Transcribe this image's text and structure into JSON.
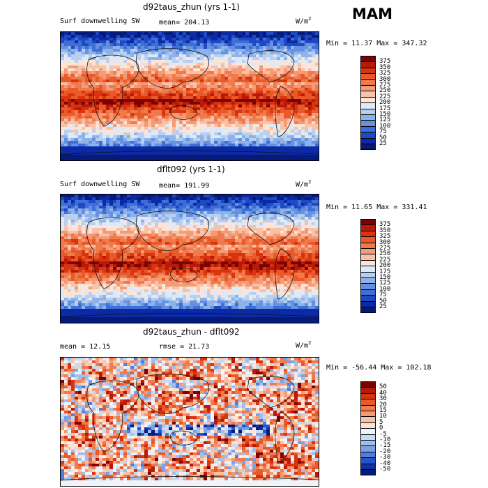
{
  "season": "MAM",
  "panels": [
    {
      "id": "top",
      "title": "d92taus_zhun (yrs 1-1)",
      "left_label": "Surf downwelling SW",
      "mean_label": "mean= 204.13",
      "units_base": "W/m",
      "units_exp": "2",
      "minmax": "Min =  11.37 Max = 347.32",
      "levels": [
        "375",
        "350",
        "325",
        "300",
        "275",
        "250",
        "225",
        "200",
        "175",
        "150",
        "125",
        "100",
        "75",
        "50",
        "25"
      ],
      "palette": [
        "#7a0403",
        "#b81a0a",
        "#d9340e",
        "#e85a2a",
        "#f07a4c",
        "#f59a77",
        "#f9c1a6",
        "#fce4d6",
        "#dde9f6",
        "#b8cff0",
        "#8eb3ea",
        "#6691e0",
        "#3d6fd7",
        "#1d4ac4",
        "#0c2aa6",
        "#061a7a"
      ]
    },
    {
      "id": "middle",
      "title": "dflt092 (yrs 1-1)",
      "left_label": "Surf downwelling SW",
      "mean_label": "mean= 191.99",
      "units_base": "W/m",
      "units_exp": "2",
      "minmax": "Min =  11.65 Max = 331.41",
      "levels": [
        "375",
        "350",
        "325",
        "300",
        "275",
        "250",
        "225",
        "200",
        "175",
        "150",
        "125",
        "100",
        "75",
        "50",
        "25"
      ],
      "palette": [
        "#7a0403",
        "#b81a0a",
        "#d9340e",
        "#e85a2a",
        "#f07a4c",
        "#f59a77",
        "#f9c1a6",
        "#fce4d6",
        "#dde9f6",
        "#b8cff0",
        "#8eb3ea",
        "#6691e0",
        "#3d6fd7",
        "#1d4ac4",
        "#0c2aa6",
        "#061a7a"
      ]
    },
    {
      "id": "bottom",
      "title": "d92taus_zhun - dflt092",
      "left_label": "mean =  12.15",
      "mean_label": "rmse =  21.73",
      "units_base": "W/m",
      "units_exp": "2",
      "minmax": "Min = -56.44 Max = 102.18",
      "levels": [
        "50",
        "40",
        "30",
        "20",
        "15",
        "10",
        "5",
        "0",
        "-5",
        "-10",
        "-15",
        "-20",
        "-30",
        "-40",
        "-50"
      ],
      "palette": [
        "#7a0403",
        "#b81a0a",
        "#d9340e",
        "#e85a2a",
        "#f07a4c",
        "#f59a77",
        "#f9c1a6",
        "#fce4d6",
        "#eef4fb",
        "#c9dbf3",
        "#9fbfec",
        "#7aa2e4",
        "#4f7dda",
        "#2654c8",
        "#0f31a8",
        "#061a7a"
      ]
    }
  ]
}
